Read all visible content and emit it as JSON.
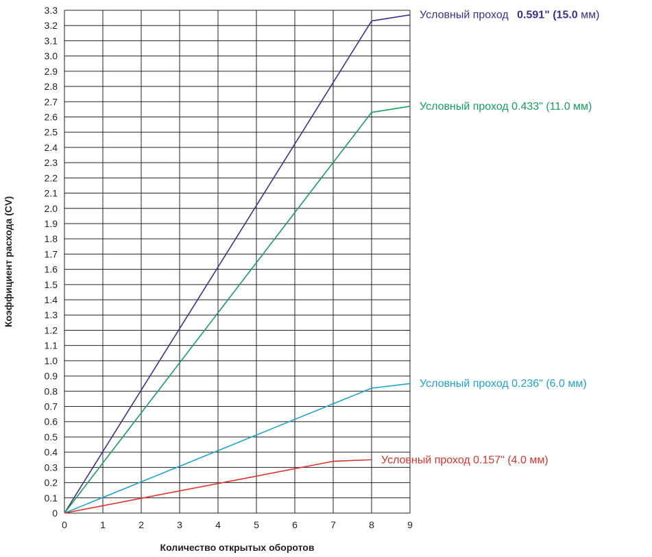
{
  "chart_data": {
    "type": "line",
    "xlabel": "Количество открытых оборотов",
    "ylabel": "Коэффициент расхода (CV)",
    "xlim": [
      0,
      9
    ],
    "ylim": [
      0,
      3.3
    ],
    "x_ticks": [
      "0",
      "1",
      "2",
      "3",
      "4",
      "5",
      "6",
      "7",
      "8",
      "9"
    ],
    "y_ticks": [
      "0",
      "0.1",
      "0.2",
      "0.3",
      "0.4",
      "0.5",
      "0.6",
      "0.7",
      "0.8",
      "0.9",
      "1.0",
      "1.1",
      "1.2",
      "1.3",
      "1.4",
      "1.5",
      "1.6",
      "1.7",
      "1.8",
      "1.9",
      "2.0",
      "2.1",
      "2.2",
      "2.3",
      "2.4",
      "2.5",
      "2.6",
      "2.7",
      "2.8",
      "2.9",
      "3.0",
      "3.1",
      "3.2",
      "3.3"
    ],
    "grid": true,
    "legend": "right, labels at line ends",
    "series": [
      {
        "label_prefix": "Условный проход ",
        "label_value": "0.591\" (15.0",
        "label_suffix": " мм)",
        "label_value_bold": true,
        "color": "#3b2f8f",
        "x": [
          0,
          8,
          9
        ],
        "y": [
          0,
          3.23,
          3.27
        ]
      },
      {
        "label_prefix": "Условный проход ",
        "label_value": "0.433\" (11.0",
        "label_suffix": " мм)",
        "label_value_bold": false,
        "color": "#13a05a",
        "x": [
          0,
          8,
          9
        ],
        "y": [
          0,
          2.63,
          2.67
        ]
      },
      {
        "label_prefix": "Условный проход ",
        "label_value": "0.236\" (6.0",
        "label_suffix": " мм)",
        "label_value_bold": false,
        "color": "#1ba3cf",
        "x": [
          0,
          8,
          9
        ],
        "y": [
          0,
          0.82,
          0.85
        ]
      },
      {
        "label_prefix": "Условный проход ",
        "label_value": "0.157\" (4.0",
        "label_suffix": " мм)",
        "label_value_bold": false,
        "color": "#e0302a",
        "x": [
          0,
          7,
          8
        ],
        "y": [
          0,
          0.34,
          0.35
        ]
      }
    ]
  }
}
